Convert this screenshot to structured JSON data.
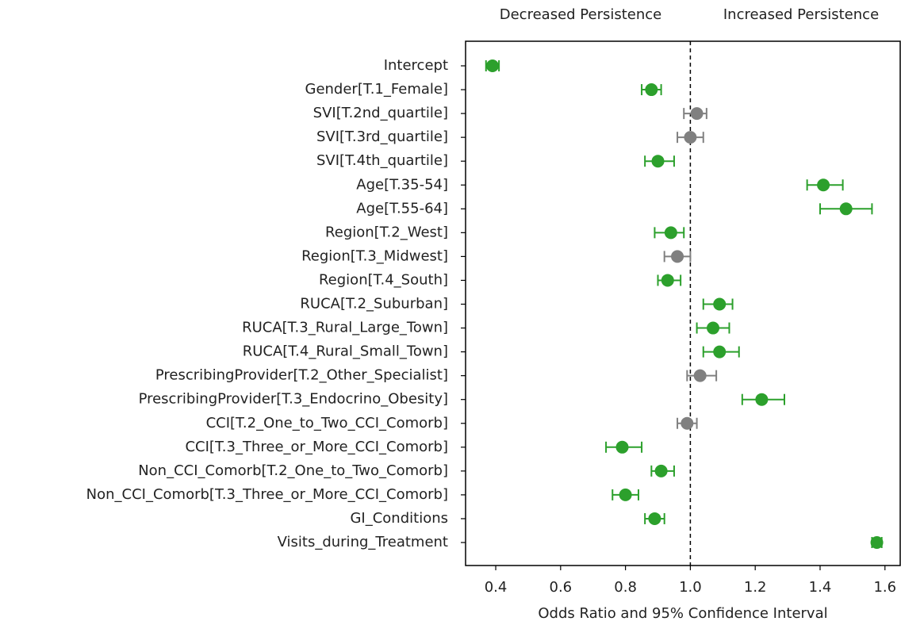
{
  "chart_data": {
    "type": "forest",
    "xlabel": "Odds Ratio and 95% Confidence Interval",
    "annotations": [
      "Decreased Persistence",
      "Increased Persistence"
    ],
    "categories": [
      "Intercept",
      "Gender[T.1_Female]",
      "SVI[T.2nd_quartile]",
      "SVI[T.3rd_quartile]",
      "SVI[T.4th_quartile]",
      "Age[T.35-54]",
      "Age[T.55-64]",
      "Region[T.2_West]",
      "Region[T.3_Midwest]",
      "Region[T.4_South]",
      "RUCA[T.2_Suburban]",
      "RUCA[T.3_Rural_Large_Town]",
      "RUCA[T.4_Rural_Small_Town]",
      "PrescribingProvider[T.2_Other_Specialist]",
      "PrescribingProvider[T.3_Endocrino_Obesity]",
      "CCI[T.2_One_to_Two_CCI_Comorb]",
      "CCI[T.3_Three_or_More_CCI_Comorb]",
      "Non_CCI_Comorb[T.2_One_to_Two_Comorb]",
      "Non_CCI_Comorb[T.3_Three_or_More_CCI_Comorb]",
      "GI_Conditions",
      "Visits_during_Treatment"
    ],
    "values": [
      0.39,
      0.88,
      1.02,
      1.0,
      0.9,
      1.41,
      1.48,
      0.94,
      0.96,
      0.93,
      1.09,
      1.07,
      1.09,
      1.03,
      1.22,
      0.99,
      0.79,
      0.91,
      0.8,
      0.89,
      1.575
    ],
    "lower": [
      0.37,
      0.85,
      0.98,
      0.96,
      0.86,
      1.36,
      1.4,
      0.89,
      0.92,
      0.9,
      1.04,
      1.02,
      1.04,
      0.99,
      1.16,
      0.96,
      0.74,
      0.88,
      0.76,
      0.86,
      1.56
    ],
    "upper": [
      0.41,
      0.91,
      1.05,
      1.04,
      0.95,
      1.47,
      1.56,
      0.98,
      1.0,
      0.97,
      1.13,
      1.12,
      1.15,
      1.08,
      1.29,
      1.02,
      0.85,
      0.95,
      0.84,
      0.92,
      1.59
    ],
    "colors": [
      "#2ca02c",
      "#2ca02c",
      "#808080",
      "#808080",
      "#2ca02c",
      "#2ca02c",
      "#2ca02c",
      "#2ca02c",
      "#808080",
      "#2ca02c",
      "#2ca02c",
      "#2ca02c",
      "#2ca02c",
      "#808080",
      "#2ca02c",
      "#808080",
      "#2ca02c",
      "#2ca02c",
      "#2ca02c",
      "#2ca02c",
      "#2ca02c"
    ],
    "reference_line": 1,
    "xlim": [
      0.307,
      1.647
    ],
    "xticks": [
      0.4,
      0.6,
      0.8,
      {
        "value": 1,
        "label": "1.0"
      },
      1.2,
      1.4,
      1.6
    ]
  }
}
